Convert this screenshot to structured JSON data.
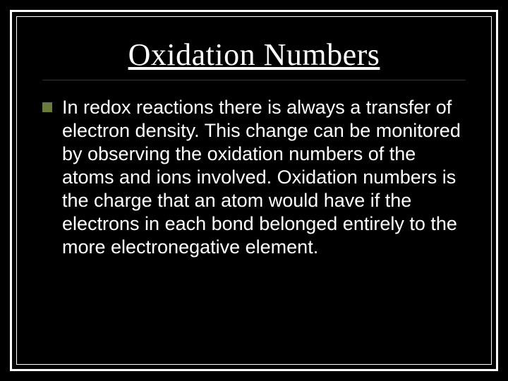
{
  "slide": {
    "title": "Oxidation Numbers",
    "bullet_color": "#6b7b3a",
    "divider_color": "#7a1a1a",
    "background_color": "#000000",
    "frame_color": "#ffffff",
    "title_font": "Times New Roman",
    "title_fontsize": 44,
    "body_font": "Arial",
    "body_fontsize": 27,
    "text_color": "#ffffff",
    "body": "In redox reactions there is always a transfer of electron density.  This change can be monitored by observing the oxidation numbers of the atoms and ions involved.  Oxidation numbers is the charge that an atom would have if the electrons in each bond belonged entirely to the more electronegative element."
  }
}
